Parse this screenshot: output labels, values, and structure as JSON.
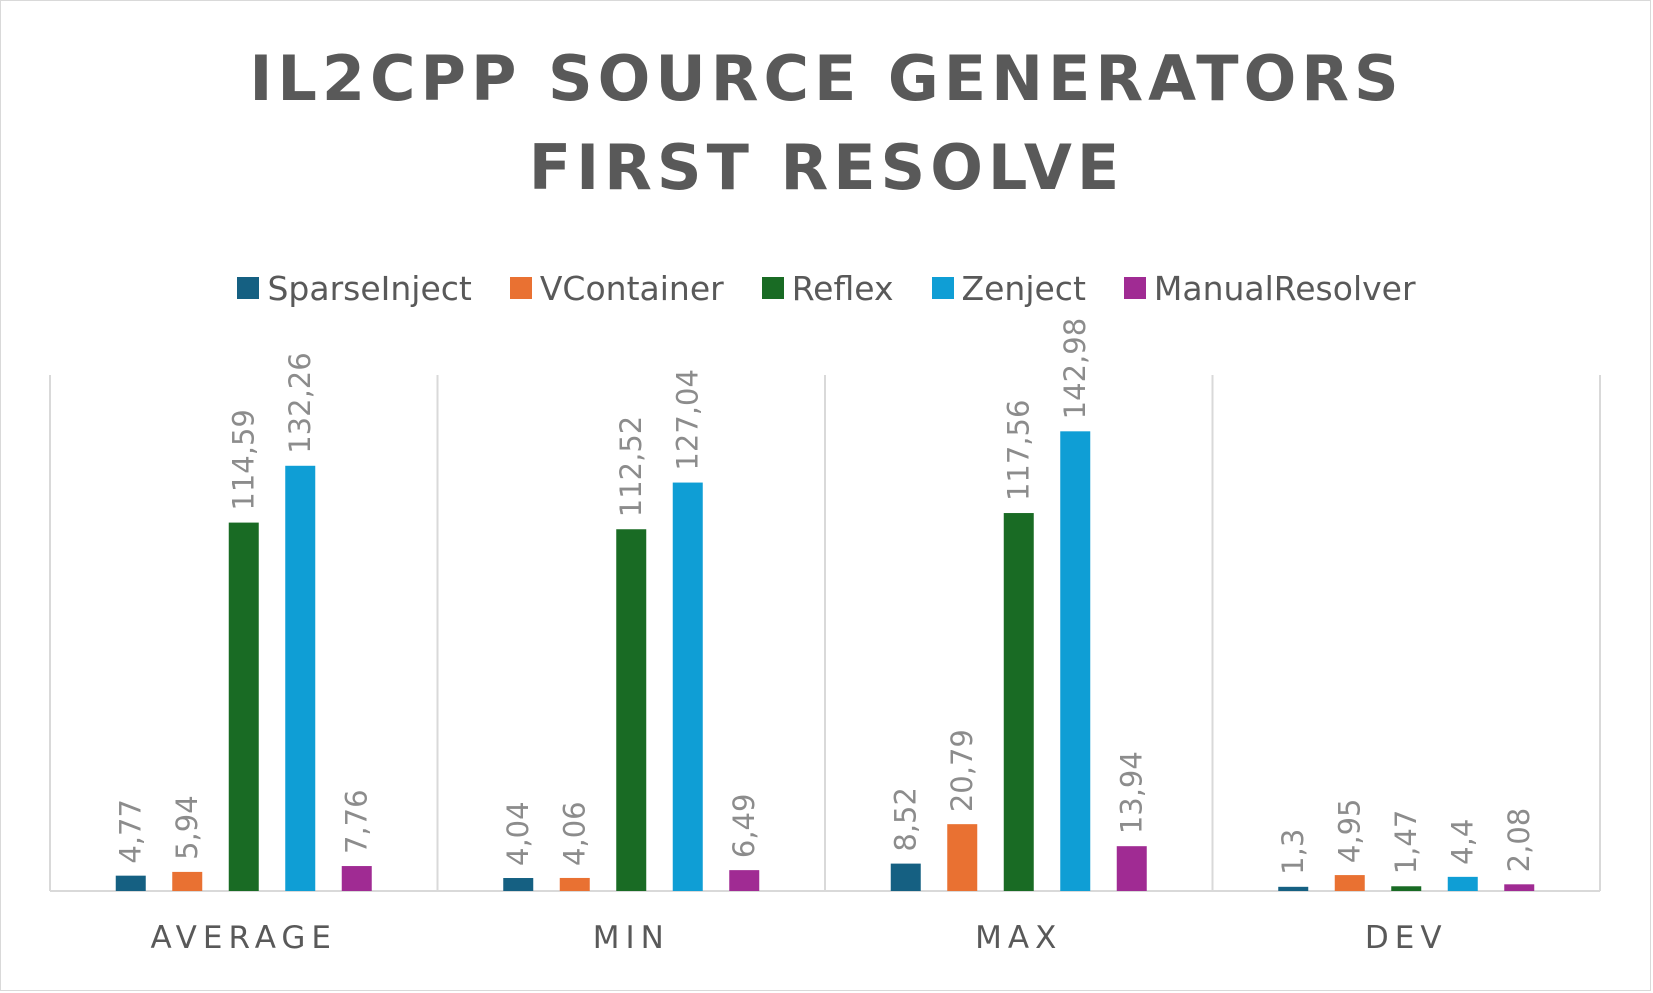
{
  "chart_data": {
    "type": "bar",
    "title_lines": [
      "IL2CPP SOURCE GENERATORS",
      "FIRST RESOLVE"
    ],
    "categories": [
      "AVERAGE",
      "MIN",
      "MAX",
      "DEV"
    ],
    "series": [
      {
        "name": "SparseInject",
        "color": "#156082",
        "values": [
          4.77,
          4.04,
          8.52,
          1.3
        ],
        "labels": [
          "4,77",
          "4,04",
          "8,52",
          "1,3"
        ]
      },
      {
        "name": "VContainer",
        "color": "#e97132",
        "values": [
          5.94,
          4.06,
          20.79,
          4.95
        ],
        "labels": [
          "5,94",
          "4,06",
          "20,79",
          "4,95"
        ]
      },
      {
        "name": "Reflex",
        "color": "#196b24",
        "values": [
          114.59,
          112.52,
          117.56,
          1.47
        ],
        "labels": [
          "114,59",
          "112,52",
          "117,56",
          "1,47"
        ]
      },
      {
        "name": "Zenject",
        "color": "#0f9ed5",
        "values": [
          132.26,
          127.04,
          142.98,
          4.4
        ],
        "labels": [
          "132,26",
          "127,04",
          "142,98",
          "4,4"
        ]
      },
      {
        "name": "ManualResolver",
        "color": "#a02b93",
        "values": [
          7.76,
          6.49,
          13.94,
          2.08
        ],
        "labels": [
          "7,76",
          "6,49",
          "13,94",
          "2,08"
        ]
      }
    ],
    "legend_position": "top",
    "grid": false,
    "ylim": [
      0,
      160
    ]
  }
}
